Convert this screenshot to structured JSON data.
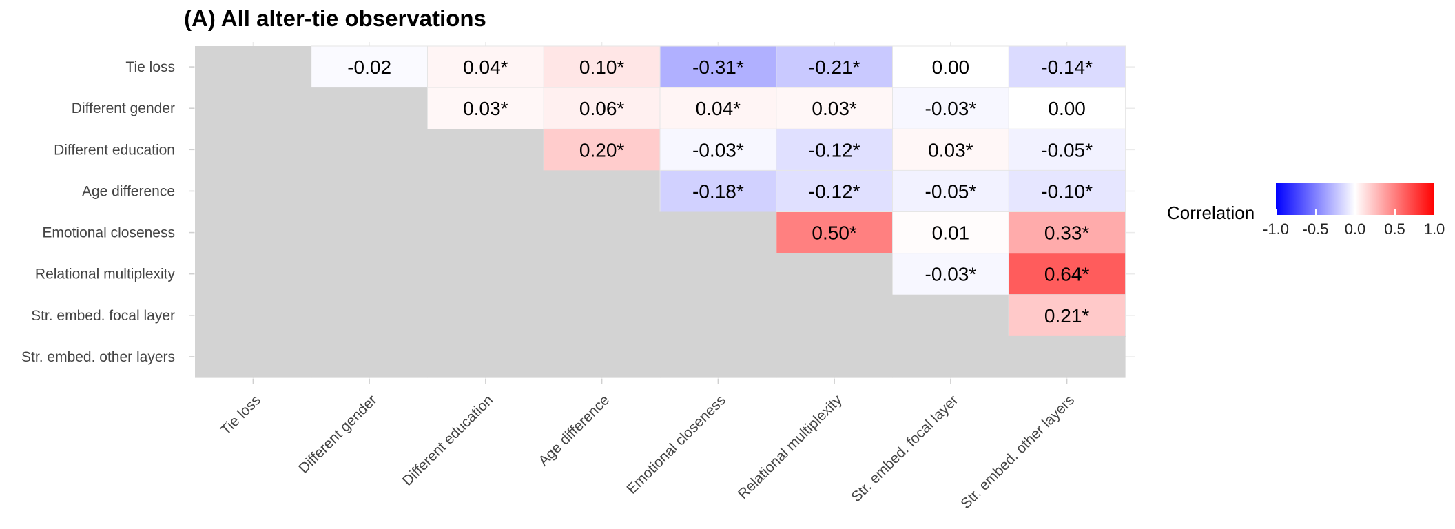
{
  "chart_data": {
    "type": "heatmap",
    "title": "(A) All alter-tie observations",
    "xlabel": "",
    "ylabel": "",
    "variables": [
      "Tie loss",
      "Different gender",
      "Different education",
      "Age difference",
      "Emotional closeness",
      "Relational multiplexity",
      "Str. embed. focal layer",
      "Str. embed. other layers"
    ],
    "values": [
      [
        null,
        -0.02,
        0.04,
        0.1,
        -0.31,
        -0.21,
        0.0,
        -0.14
      ],
      [
        null,
        null,
        0.03,
        0.06,
        0.04,
        0.03,
        -0.03,
        0.0
      ],
      [
        null,
        null,
        null,
        0.2,
        -0.03,
        -0.12,
        0.03,
        -0.05
      ],
      [
        null,
        null,
        null,
        null,
        -0.18,
        -0.12,
        -0.05,
        -0.1
      ],
      [
        null,
        null,
        null,
        null,
        null,
        0.5,
        0.01,
        0.33
      ],
      [
        null,
        null,
        null,
        null,
        null,
        null,
        -0.03,
        0.64
      ],
      [
        null,
        null,
        null,
        null,
        null,
        null,
        null,
        0.21
      ],
      [
        null,
        null,
        null,
        null,
        null,
        null,
        null,
        null
      ]
    ],
    "labels": [
      [
        null,
        "-0.02",
        "0.04*",
        "0.10*",
        "-0.31*",
        "-0.21*",
        "0.00",
        "-0.14*"
      ],
      [
        null,
        null,
        "0.03*",
        "0.06*",
        "0.04*",
        "0.03*",
        "-0.03*",
        "0.00"
      ],
      [
        null,
        null,
        null,
        "0.20*",
        "-0.03*",
        "-0.12*",
        "0.03*",
        "-0.05*"
      ],
      [
        null,
        null,
        null,
        null,
        "-0.18*",
        "-0.12*",
        "-0.05*",
        "-0.10*"
      ],
      [
        null,
        null,
        null,
        null,
        null,
        "0.50*",
        "0.01",
        "0.33*"
      ],
      [
        null,
        null,
        null,
        null,
        null,
        null,
        "-0.03*",
        "0.64*"
      ],
      [
        null,
        null,
        null,
        null,
        null,
        null,
        null,
        "0.21*"
      ],
      [
        null,
        null,
        null,
        null,
        null,
        null,
        null,
        null
      ]
    ],
    "legend": {
      "title": "Correlation",
      "ticks": [
        "-1.0",
        "-0.5",
        "0.0",
        "0.5",
        "1.0"
      ],
      "range": [
        -1,
        1
      ],
      "low_color": "#0000ff",
      "mid_color": "#ffffff",
      "high_color": "#ff0000",
      "position": "right"
    },
    "na_color": "#d3d3d3",
    "grid": true
  }
}
